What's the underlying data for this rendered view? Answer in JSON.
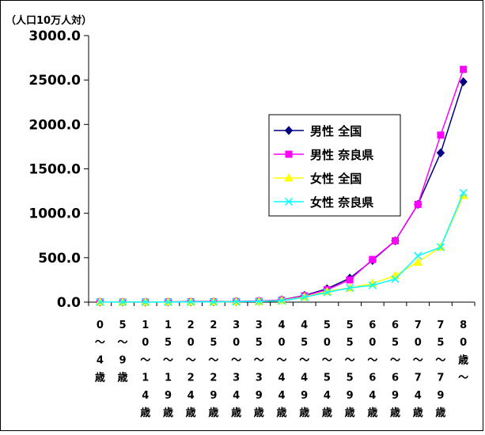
{
  "chart_data": {
    "type": "line",
    "unit_label": "（人口10万人対）",
    "ylim": [
      0,
      3000
    ],
    "yticks": [
      "3000.0",
      "2500.0",
      "2000.0",
      "1500.0",
      "1000.0",
      "500.0",
      "0.0"
    ],
    "ytick_values": [
      3000,
      2500,
      2000,
      1500,
      1000,
      500,
      0
    ],
    "categories": [
      "0～4歳",
      "5～9歳",
      "10～14歳",
      "15～19歳",
      "20～24歳",
      "25～29歳",
      "30～34歳",
      "35～39歳",
      "40～44歳",
      "45～49歳",
      "50～54歳",
      "55～59歳",
      "60～64歳",
      "65～69歳",
      "70～74歳",
      "75～79歳",
      "80歳～"
    ],
    "category_chars": [
      [
        "0",
        "～",
        "4",
        "歳"
      ],
      [
        "5",
        "～",
        "9",
        "歳"
      ],
      [
        "1",
        "0",
        "～",
        "1",
        "4",
        "歳"
      ],
      [
        "1",
        "5",
        "～",
        "1",
        "9",
        "歳"
      ],
      [
        "2",
        "0",
        "～",
        "2",
        "4",
        "歳"
      ],
      [
        "2",
        "5",
        "～",
        "2",
        "9",
        "歳"
      ],
      [
        "3",
        "0",
        "～",
        "3",
        "4",
        "歳"
      ],
      [
        "3",
        "5",
        "～",
        "3",
        "9",
        "歳"
      ],
      [
        "4",
        "0",
        "～",
        "4",
        "4",
        "歳"
      ],
      [
        "4",
        "5",
        "～",
        "4",
        "9",
        "歳"
      ],
      [
        "5",
        "0",
        "～",
        "5",
        "4",
        "歳"
      ],
      [
        "5",
        "5",
        "～",
        "5",
        "9",
        "歳"
      ],
      [
        "6",
        "0",
        "～",
        "6",
        "4",
        "歳"
      ],
      [
        "6",
        "5",
        "～",
        "6",
        "9",
        "歳"
      ],
      [
        "7",
        "0",
        "～",
        "7",
        "4",
        "歳"
      ],
      [
        "7",
        "5",
        "～",
        "7",
        "9",
        "歳"
      ],
      [
        "8",
        "0",
        "歳",
        "～"
      ]
    ],
    "series": [
      {
        "name": "男性 全国",
        "color": "#000080",
        "marker": "diamond",
        "values": [
          3,
          2,
          2,
          3,
          5,
          5,
          8,
          12,
          25,
          75,
          150,
          270,
          470,
          690,
          1100,
          1680,
          2480
        ]
      },
      {
        "name": "男性 奈良県",
        "color": "#ff00ff",
        "marker": "square",
        "values": [
          2,
          1,
          1,
          2,
          4,
          4,
          7,
          11,
          22,
          70,
          140,
          250,
          480,
          690,
          1100,
          1880,
          2620
        ]
      },
      {
        "name": "女性 全国",
        "color": "#ffff00",
        "marker": "triangle",
        "values": [
          2,
          1,
          1,
          2,
          3,
          3,
          5,
          8,
          18,
          60,
          120,
          160,
          210,
          300,
          450,
          620,
          1200
        ]
      },
      {
        "name": "女性 奈良県",
        "color": "#00ffff",
        "marker": "x",
        "values": [
          1,
          1,
          1,
          1,
          2,
          3,
          5,
          8,
          15,
          55,
          110,
          160,
          190,
          260,
          520,
          620,
          1230
        ]
      }
    ],
    "grid": false,
    "legend_position": "right"
  }
}
